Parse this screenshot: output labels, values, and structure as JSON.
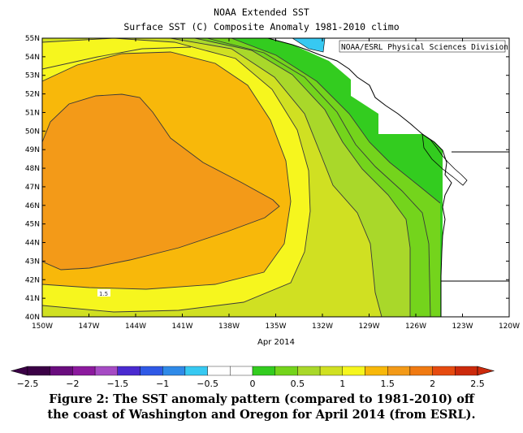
{
  "header": {
    "title": "NOAA Extended SST",
    "subtitle": "Surface SST (C) Composite Anomaly 1981-2010 climo"
  },
  "credit": "NOAA/ESRL Physical Sciences Division",
  "map": {
    "lon_labels": [
      "150W",
      "147W",
      "144W",
      "141W",
      "138W",
      "135W",
      "132W",
      "129W",
      "126W",
      "123W",
      "120W"
    ],
    "lat_labels": [
      "40N",
      "41N",
      "42N",
      "43N",
      "44N",
      "45N",
      "46N",
      "47N",
      "48N",
      "49N",
      "50N",
      "51N",
      "52N",
      "53N",
      "54N",
      "55N"
    ],
    "time_label": "Apr 2014",
    "contour_label": "1.5"
  },
  "colorbar": {
    "colors": [
      "#3b0146",
      "#6a0d7e",
      "#8c1a9e",
      "#a64bc4",
      "#4a2ad0",
      "#2f59e6",
      "#2f8ae8",
      "#37c9f2",
      "#ffffff",
      "#ffffff",
      "#33cc1f",
      "#74d41c",
      "#a9d82a",
      "#d0e022",
      "#f6f61e",
      "#f8b80a",
      "#f39a18",
      "#f07a12",
      "#e64b10",
      "#cc2a0c"
    ],
    "labels": [
      "-2.5",
      "-2",
      "-1.5",
      "-1",
      "-0.5",
      "0",
      "0.5",
      "1",
      "1.5",
      "2",
      "2.5"
    ]
  },
  "caption": {
    "line1": "Figure 2: The SST anomaly pattern (compared to 1981-2010) off",
    "line2": "the coast of Washington and Oregon for April 2014 (from ESRL)."
  }
}
